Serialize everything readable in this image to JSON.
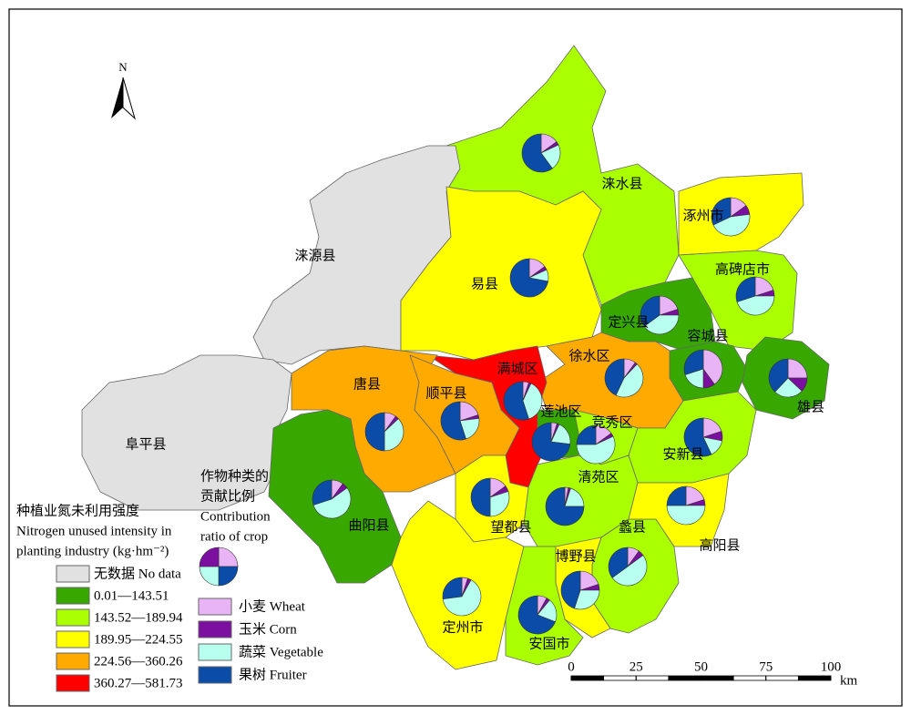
{
  "north": "N",
  "counties": [
    {
      "name": "涞水县",
      "pie": [
        15,
        3,
        22,
        60
      ]
    },
    {
      "name": "涿州市",
      "pie": [
        15,
        8,
        45,
        32
      ]
    },
    {
      "name": "涞源县"
    },
    {
      "name": "易县",
      "pie": [
        15,
        3,
        10,
        72
      ]
    },
    {
      "name": "高碑店市",
      "pie": [
        20,
        5,
        45,
        30
      ]
    },
    {
      "name": "定兴县",
      "pie": [
        20,
        5,
        40,
        35
      ]
    },
    {
      "name": "容城县",
      "pie": [
        40,
        10,
        20,
        30
      ]
    },
    {
      "name": "徐水区",
      "pie": [
        10,
        2,
        45,
        43
      ]
    },
    {
      "name": "满城区",
      "pie": [
        5,
        2,
        38,
        55
      ]
    },
    {
      "name": "唐县",
      "pie": [
        10,
        3,
        37,
        50
      ]
    },
    {
      "name": "顺平县",
      "pie": [
        20,
        3,
        22,
        55
      ]
    },
    {
      "name": "莲池区",
      "pie": [
        5,
        2,
        20,
        73
      ]
    },
    {
      "name": "竞秀区",
      "pie": [
        15,
        3,
        57,
        25
      ]
    },
    {
      "name": "雄县",
      "pie": [
        25,
        12,
        25,
        38
      ]
    },
    {
      "name": "阜平县"
    },
    {
      "name": "安新县",
      "pie": [
        20,
        8,
        15,
        57
      ]
    },
    {
      "name": "清苑区",
      "pie": [
        3,
        2,
        20,
        75
      ]
    },
    {
      "name": "曲阳县",
      "pie": [
        10,
        5,
        55,
        30
      ]
    },
    {
      "name": "望都县",
      "pie": [
        15,
        5,
        30,
        50
      ]
    },
    {
      "name": "蠡县",
      "pie": [
        10,
        5,
        50,
        35
      ]
    },
    {
      "name": "高阳县",
      "pie": [
        20,
        5,
        50,
        25
      ]
    },
    {
      "name": "博野县",
      "pie": [
        20,
        5,
        30,
        45
      ]
    },
    {
      "name": "定州市",
      "pie": [
        5,
        3,
        65,
        27
      ]
    },
    {
      "name": "安国市",
      "pie": [
        8,
        3,
        20,
        69
      ]
    }
  ],
  "legend": {
    "title": [
      "种植业氮未利用强度",
      "Nitrogen unused intensity in",
      "planting industry (kg·hm⁻²)"
    ],
    "classes": [
      {
        "label": "无数据 No data",
        "color": "#e1e1e1"
      },
      {
        "label": "0.01—143.51",
        "color": "#38a800"
      },
      {
        "label": "143.52—189.94",
        "color": "#aaff00"
      },
      {
        "label": "189.95—224.55",
        "color": "#ffff00"
      },
      {
        "label": "224.56—360.26",
        "color": "#ffaa00"
      },
      {
        "label": "360.27—581.73",
        "color": "#ff0000"
      }
    ]
  },
  "crop_legend": {
    "title": [
      "作物种类的",
      "贡献比例",
      "Contribution",
      "ratio of crop"
    ],
    "crops": [
      {
        "label": "小麦 Wheat",
        "color": "#e8b4f5"
      },
      {
        "label": "玉米 Corn",
        "color": "#7a0fa0"
      },
      {
        "label": "蔬菜 Vegetable",
        "color": "#b8fff0"
      },
      {
        "label": "果树 Fruiter",
        "color": "#0a4ca8"
      }
    ]
  },
  "scale": {
    "ticks": [
      0,
      25,
      50,
      75,
      100
    ],
    "unit": "km"
  }
}
